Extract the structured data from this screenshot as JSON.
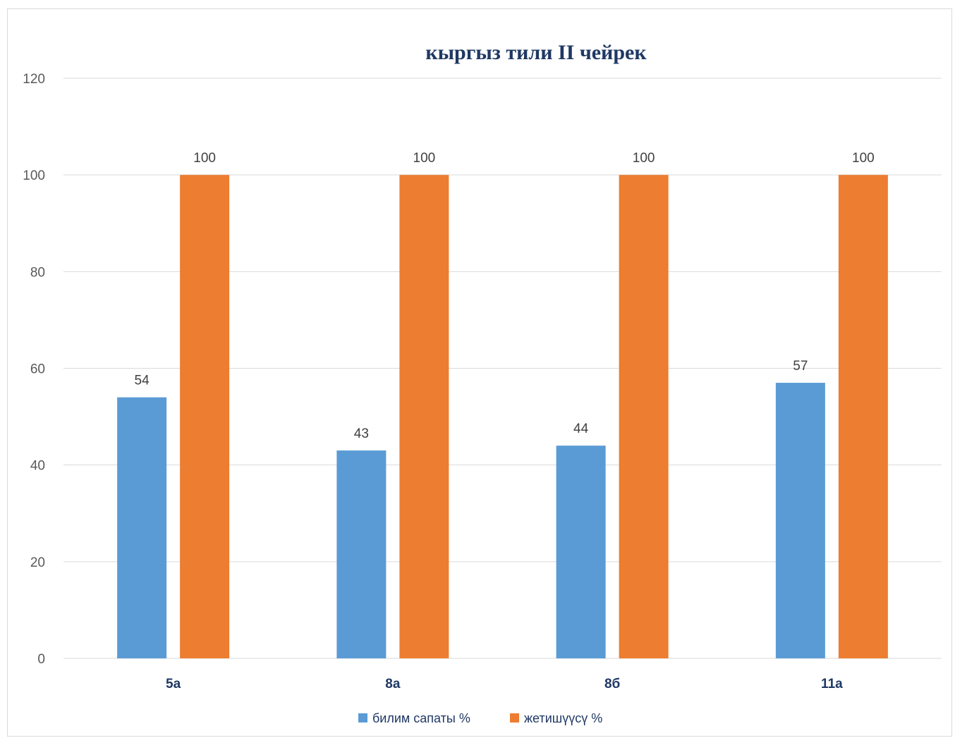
{
  "chart_data": {
    "type": "bar",
    "title": "кыргыз тили II чейрек",
    "categories": [
      "5а",
      "8а",
      "8б",
      "11а"
    ],
    "series": [
      {
        "name": "билим сапаты %",
        "color": "#5b9bd5",
        "values": [
          54,
          43,
          44,
          57
        ]
      },
      {
        "name": "жетишүүсү %",
        "color": "#ed7d31",
        "values": [
          100,
          100,
          100,
          100
        ]
      }
    ],
    "ylim": [
      0,
      120
    ],
    "yticks": [
      0,
      20,
      40,
      60,
      80,
      100,
      120
    ],
    "grid": true,
    "legend": "bottom",
    "data_labels": true
  }
}
